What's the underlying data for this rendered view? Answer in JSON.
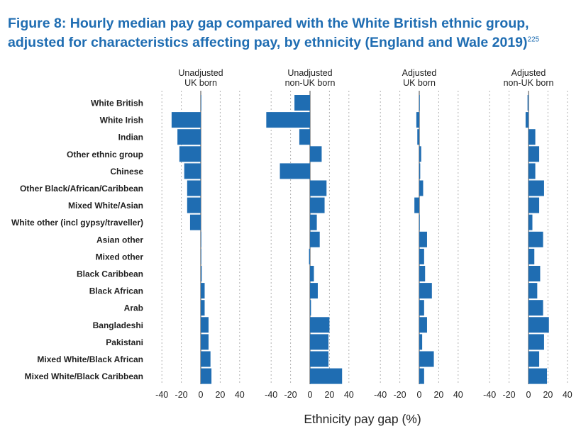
{
  "title": {
    "line1": "Figure 8: Hourly median pay gap compared with the White British ethnic group,",
    "line2": "adjusted for characteristics affecting pay, by ethnicity (England and Wale 2019)",
    "footnote": "225"
  },
  "colors": {
    "bar": "#1f6db2",
    "title": "#1f6db2",
    "text": "#222222",
    "grid": "#b0b0b0",
    "zero": "#444444"
  },
  "chart_data": {
    "type": "bar",
    "orientation": "horizontal",
    "xlabel": "Ethnicity pay gap (%)",
    "xlim": [
      -40,
      40
    ],
    "xticks": [
      -40,
      -20,
      0,
      20,
      40
    ],
    "grid": true,
    "categories": [
      "White British",
      "White Irish",
      "Indian",
      "Other ethnic group",
      "Chinese",
      "Other Black/African/Caribbean",
      "Mixed White/Asian",
      "White other (incl gypsy/traveller)",
      "Asian other",
      "Mixed other",
      "Black Caribbean",
      "Black African",
      "Arab",
      "Bangladeshi",
      "Pakistani",
      "Mixed White/Black African",
      "Mixed White/Black Caribbean"
    ],
    "series": [
      {
        "name": "Unadjusted UK born",
        "label_lines": [
          "Unadjusted",
          "UK born"
        ],
        "values": [
          0,
          -30,
          -24,
          -22,
          -17,
          -14,
          -14,
          -11,
          0,
          0,
          1,
          4,
          4,
          8,
          8,
          10,
          11
        ]
      },
      {
        "name": "Unadjusted non-UK born",
        "label_lines": [
          "Unadjusted",
          "non-UK born"
        ],
        "values": [
          -16,
          -45,
          -11,
          12,
          -31,
          17,
          15,
          7,
          10,
          -1,
          4,
          8,
          1,
          20,
          19,
          19,
          33
        ]
      },
      {
        "name": "Adjusted UK born",
        "label_lines": [
          "Adjusted",
          "UK born"
        ],
        "values": [
          0,
          -3,
          -2,
          2,
          1,
          4,
          -5,
          0,
          8,
          5,
          6,
          13,
          5,
          8,
          3,
          15,
          5
        ]
      },
      {
        "name": "Adjusted non-UK born",
        "label_lines": [
          "Adjusted",
          "non-UK born"
        ],
        "values": [
          -1,
          -3,
          7,
          11,
          7,
          16,
          11,
          4,
          15,
          6,
          12,
          9,
          15,
          21,
          16,
          11,
          19
        ]
      }
    ]
  }
}
